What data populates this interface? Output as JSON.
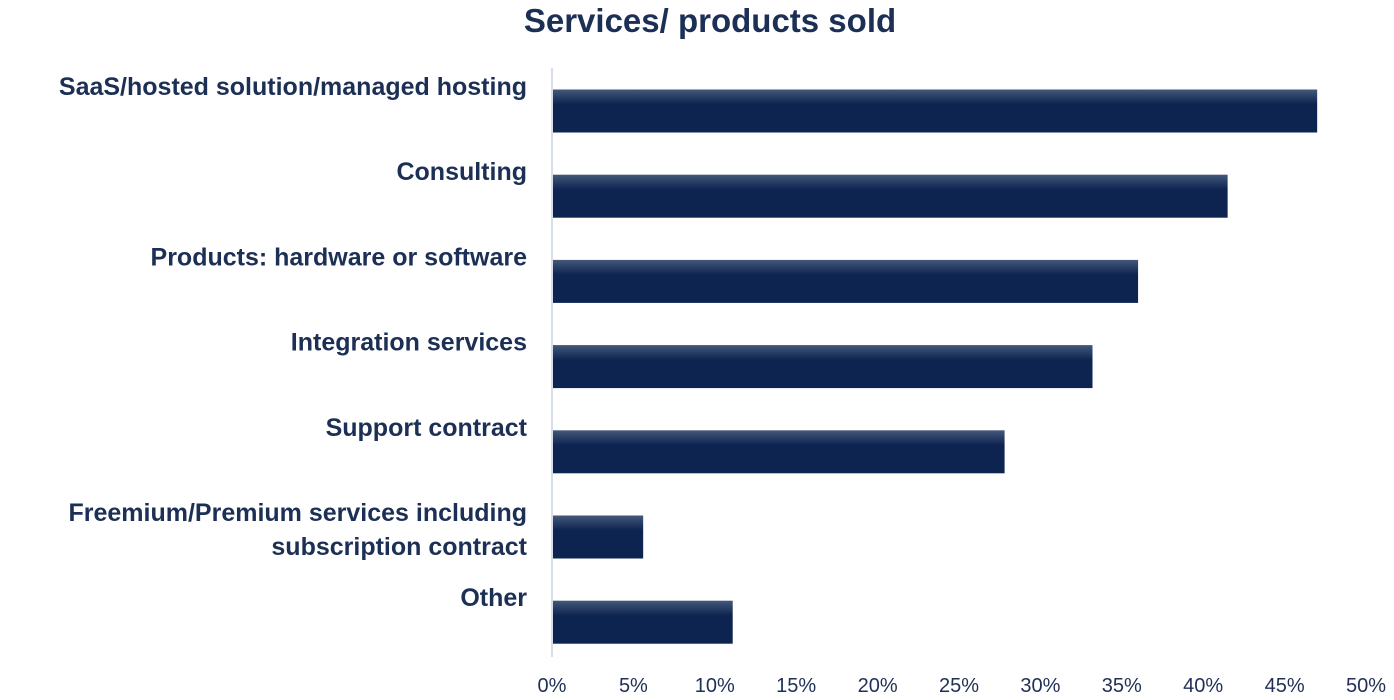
{
  "chart_data": {
    "type": "bar",
    "orientation": "horizontal",
    "title": "Services/ products sold",
    "xlabel": "",
    "ylabel": "",
    "categories": [
      [
        "SaaS/hosted solution/managed hosting"
      ],
      [
        "Consulting"
      ],
      [
        "Products: hardware or software"
      ],
      [
        "Integration services"
      ],
      [
        "Support contract"
      ],
      [
        "Freemium/Premium services including",
        "subscription contract"
      ],
      [
        "Other"
      ]
    ],
    "values": [
      47,
      41.5,
      36,
      33.2,
      27.8,
      5.6,
      11.1
    ],
    "value_unit": "%",
    "xlim": [
      0,
      50
    ],
    "xticks": [
      0,
      5,
      10,
      15,
      20,
      25,
      30,
      35,
      40,
      45,
      50
    ],
    "xtick_labels": [
      "0%",
      "5%",
      "10%",
      "15%",
      "20%",
      "25%",
      "30%",
      "35%",
      "40%",
      "45%",
      "50%"
    ],
    "grid": false,
    "legend": "none",
    "bar_color": "#0d2350",
    "bar_highlight": "#44587a"
  }
}
